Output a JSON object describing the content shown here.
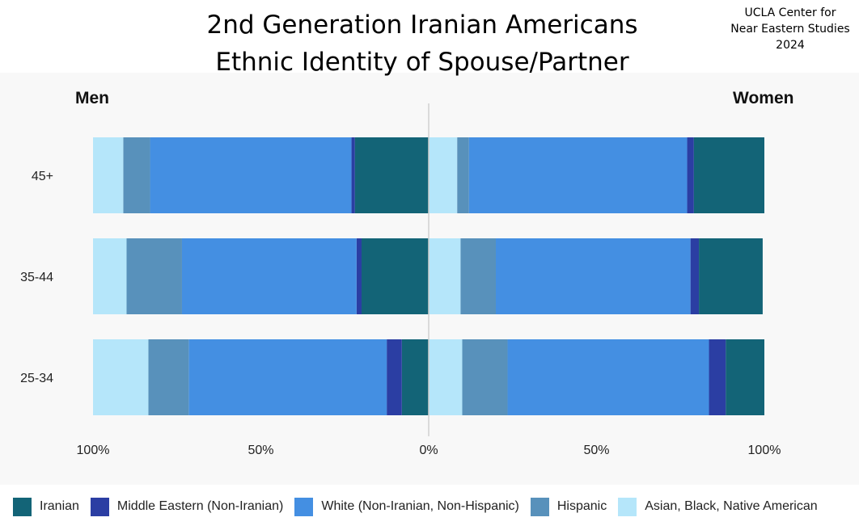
{
  "title_line1": "2nd Generation Iranian Americans",
  "title_line2": "Ethnic Identity of Spouse/Partner",
  "source_lines": [
    "UCLA Center for",
    "Near Eastern Studies",
    "2024"
  ],
  "men_label": "Men",
  "women_label": "Women",
  "chart_data": {
    "type": "bar",
    "orientation": "horizontal-diverging",
    "categories": [
      "45+",
      "35-44",
      "25-34"
    ],
    "x_ticks": [
      "100%",
      "50%",
      "0%",
      "50%",
      "100%"
    ],
    "xlim": [
      -100,
      100
    ],
    "grid": false,
    "legend_position": "bottom",
    "series": [
      {
        "name": "Iranian",
        "color": "#136477",
        "men": [
          22,
          20,
          8
        ],
        "women": [
          21,
          19,
          11.5
        ]
      },
      {
        "name": "Middle Eastern (Non-Iranian)",
        "color": "#2b3ea3",
        "men": [
          1,
          1.5,
          4.5
        ],
        "women": [
          2,
          2.5,
          5
        ]
      },
      {
        "name": "White (Non-Iranian, Non-Hispanic)",
        "color": "#448fe2",
        "men": [
          60,
          52,
          59
        ],
        "women": [
          65,
          58,
          60
        ]
      },
      {
        "name": "Hispanic",
        "color": "#5891bb",
        "men": [
          8,
          16.5,
          12
        ],
        "women": [
          3.5,
          10.5,
          13.5
        ]
      },
      {
        "name": "Asian, Black, Native American",
        "color": "#b5e6fa",
        "men": [
          9,
          10,
          16.5
        ],
        "women": [
          8.5,
          9.5,
          10
        ]
      }
    ]
  }
}
